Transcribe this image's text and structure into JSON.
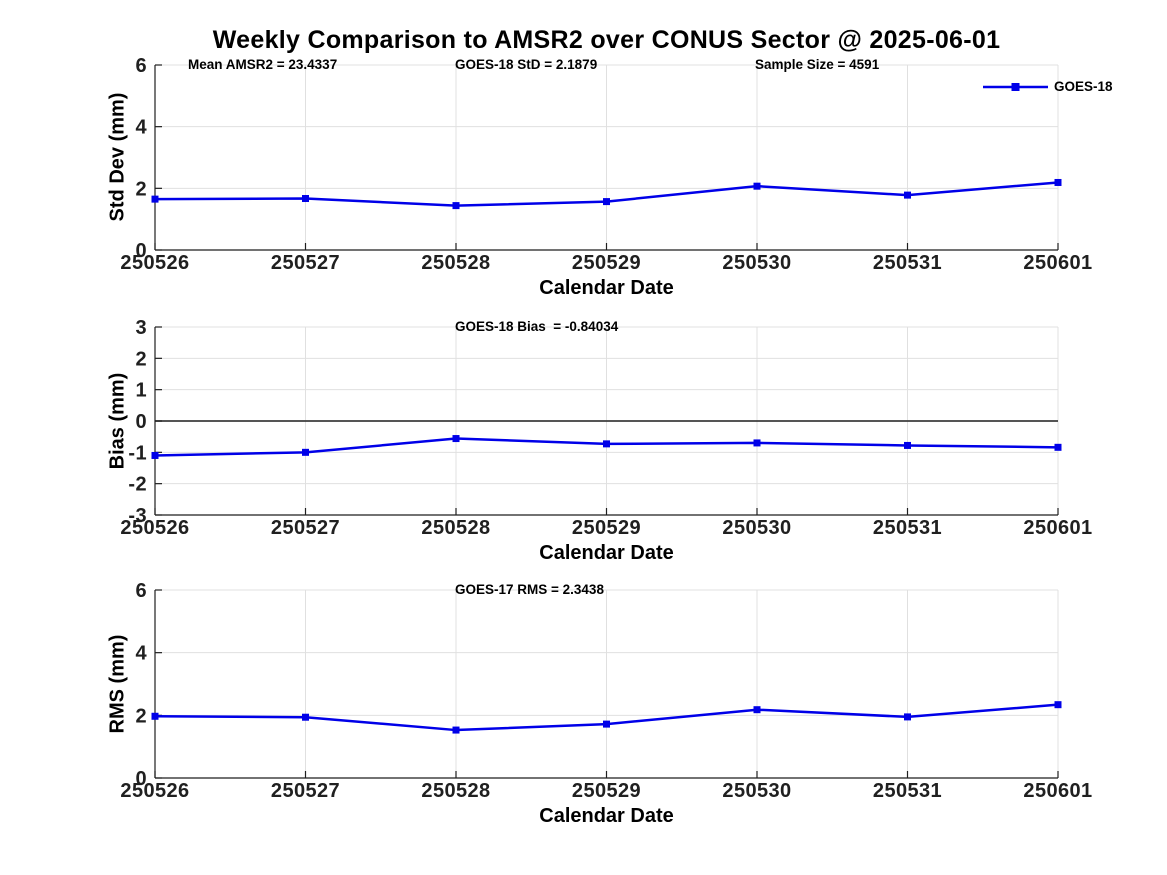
{
  "title": "Weekly Comparison to AMSR2 over CONUS Sector @ 2025-06-01",
  "colors": {
    "series": "#0000e8",
    "grid": "#e0e0e0",
    "axis": "#1f1f1f",
    "zero_line": "#3d3d3d"
  },
  "chart_data": [
    {
      "type": "line",
      "name": "std-dev-panel",
      "ylabel": "Std Dev (mm)",
      "xlabel": "Calendar Date",
      "categories": [
        "250526",
        "250527",
        "250528",
        "250529",
        "250530",
        "250531",
        "250601"
      ],
      "series": [
        {
          "name": "GOES-18",
          "marker": "square",
          "values": [
            1.65,
            1.67,
            1.44,
            1.57,
            2.07,
            1.78,
            2.19
          ]
        }
      ],
      "ylim": [
        0,
        6
      ],
      "yticks": [
        0,
        2,
        4,
        6
      ],
      "grid": true,
      "legend": {
        "label": "GOES-18",
        "position": "upper-right"
      },
      "annotations": [
        "Mean AMSR2 = 23.4337",
        "GOES-18 StD = 2.1879",
        "Sample Size = 4591"
      ]
    },
    {
      "type": "line",
      "name": "bias-panel",
      "ylabel": "Bias (mm)",
      "xlabel": "Calendar Date",
      "categories": [
        "250526",
        "250527",
        "250528",
        "250529",
        "250530",
        "250531",
        "250601"
      ],
      "series": [
        {
          "name": "GOES-18",
          "marker": "square",
          "values": [
            -1.1,
            -1.0,
            -0.56,
            -0.73,
            -0.7,
            -0.78,
            -0.84
          ]
        }
      ],
      "ylim": [
        -3,
        3
      ],
      "yticks": [
        3,
        2,
        1,
        0,
        -1,
        -2,
        -3
      ],
      "grid": true,
      "zero_line": true,
      "annotations": [
        "GOES-18 Bias  = -0.84034"
      ]
    },
    {
      "type": "line",
      "name": "rms-panel",
      "ylabel": "RMS (mm)",
      "xlabel": "Calendar Date",
      "categories": [
        "250526",
        "250527",
        "250528",
        "250529",
        "250530",
        "250531",
        "250601"
      ],
      "series": [
        {
          "name": "GOES-18",
          "marker": "square",
          "values": [
            1.97,
            1.94,
            1.53,
            1.72,
            2.18,
            1.95,
            2.34
          ]
        }
      ],
      "ylim": [
        0,
        6
      ],
      "yticks": [
        0,
        2,
        4,
        6
      ],
      "grid": true,
      "annotations": [
        "GOES-17 RMS = 2.3438"
      ]
    }
  ]
}
